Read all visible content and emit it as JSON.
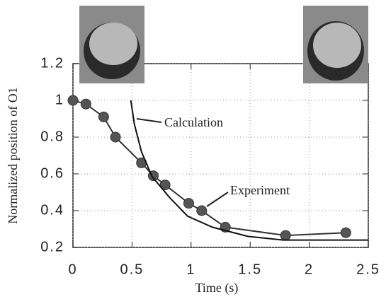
{
  "chart_data": {
    "type": "line",
    "x_label": "Time (s)",
    "y_label": "Normalized position of O1",
    "xlim": [
      0,
      2.5
    ],
    "ylim": [
      0.2,
      1.2
    ],
    "xticks": [
      0,
      0.5,
      1,
      1.5,
      2,
      2.5
    ],
    "yticks": [
      0.2,
      0.4,
      0.6,
      0.8,
      1,
      1.2
    ],
    "grid": true,
    "series": [
      {
        "name": "Experiment",
        "color": "#333333",
        "marker": "circle",
        "x": [
          0,
          0.11,
          0.26,
          0.36,
          0.58,
          0.68,
          0.78,
          0.98,
          1.09,
          1.29,
          1.8,
          2.31
        ],
        "values": [
          1.0,
          0.98,
          0.91,
          0.8,
          0.66,
          0.59,
          0.54,
          0.44,
          0.4,
          0.31,
          0.265,
          0.28
        ]
      },
      {
        "name": "Calculation",
        "color": "#111111",
        "marker": "none",
        "x": [
          0.49,
          0.52,
          0.58,
          0.67,
          0.82,
          0.97,
          1.18,
          1.48,
          1.78,
          2.1,
          2.5
        ],
        "values": [
          1.0,
          0.87,
          0.72,
          0.585,
          0.47,
          0.37,
          0.31,
          0.26,
          0.24,
          0.24,
          0.24
        ]
      }
    ]
  }
}
